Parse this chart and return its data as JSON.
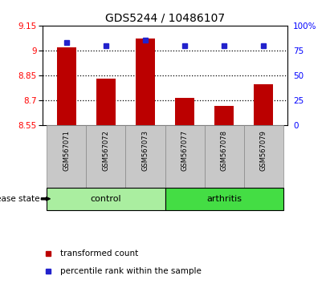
{
  "title": "GDS5244 / 10486107",
  "samples": [
    "GSM567071",
    "GSM567072",
    "GSM567073",
    "GSM567077",
    "GSM567078",
    "GSM567079"
  ],
  "transformed_counts": [
    9.02,
    8.83,
    9.07,
    8.715,
    8.665,
    8.795
  ],
  "percentile_ranks": [
    83,
    80,
    85,
    80,
    80,
    80
  ],
  "ylim_left": [
    8.55,
    9.15
  ],
  "ylim_right": [
    0,
    100
  ],
  "yticks_left": [
    8.55,
    8.7,
    8.85,
    9.0,
    9.15
  ],
  "yticks_right": [
    0,
    25,
    50,
    75,
    100
  ],
  "ytick_labels_left": [
    "8.55",
    "8.7",
    "8.85",
    "9",
    "9.15"
  ],
  "ytick_labels_right": [
    "0",
    "25",
    "50",
    "75",
    "100%"
  ],
  "hlines": [
    9.0,
    8.85,
    8.7
  ],
  "bar_color": "#BB0000",
  "dot_color": "#2222CC",
  "bar_bottom": 8.55,
  "control_color": "#AAEEA0",
  "arthritis_color": "#44DD44",
  "groups": [
    {
      "label": "control",
      "indices": [
        0,
        1,
        2
      ],
      "color": "#AAEEA0"
    },
    {
      "label": "arthritis",
      "indices": [
        3,
        4,
        5
      ],
      "color": "#44DD44"
    }
  ],
  "legend_bar_label": "transformed count",
  "legend_dot_label": "percentile rank within the sample",
  "disease_state_label": "disease state",
  "background_color": "#FFFFFF",
  "label_area_color": "#C8C8C8"
}
